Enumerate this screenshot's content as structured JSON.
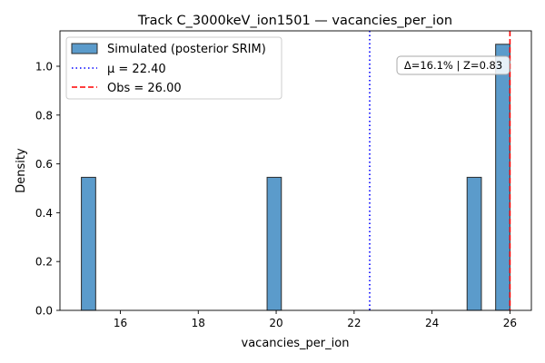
{
  "chart_data": {
    "type": "bar",
    "title": "Track C_3000keV_ion1501 — vacancies_per_ion",
    "xlabel": "vacancies_per_ion",
    "ylabel": "Density",
    "xlim": [
      14.45,
      26.55
    ],
    "ylim": [
      0,
      1.145
    ],
    "xticks": [
      16,
      18,
      20,
      22,
      24,
      26
    ],
    "xtick_labels": [
      "16",
      "18",
      "20",
      "22",
      "24",
      "26"
    ],
    "yticks": [
      0.0,
      0.2,
      0.4,
      0.6,
      0.8,
      1.0
    ],
    "ytick_labels": [
      "0.0",
      "0.2",
      "0.4",
      "0.6",
      "0.8",
      "1.0"
    ],
    "grid": false,
    "series": [
      {
        "name": "Simulated (posterior SRIM)",
        "color": "#5b9bcb",
        "edge_color": "#2b2b2b",
        "bins": [
          {
            "x0": 15.0,
            "x1": 15.367,
            "density": 0.545
          },
          {
            "x0": 19.767,
            "x1": 20.133,
            "density": 0.545
          },
          {
            "x0": 24.9,
            "x1": 25.267,
            "density": 0.545
          },
          {
            "x0": 25.633,
            "x1": 26.0,
            "density": 1.09
          }
        ]
      }
    ],
    "reference_lines": [
      {
        "name": "mu",
        "label": "μ = 22.40",
        "x": 22.4,
        "color": "#0000ff",
        "style": "dotted"
      },
      {
        "name": "obs",
        "label": "Obs = 26.00",
        "x": 26.0,
        "color": "#ff0000",
        "style": "dashed"
      }
    ],
    "legend_position": "top-left",
    "annotation": "Δ=16.1% | Z=0.83",
    "annotation_position": "top-right"
  }
}
